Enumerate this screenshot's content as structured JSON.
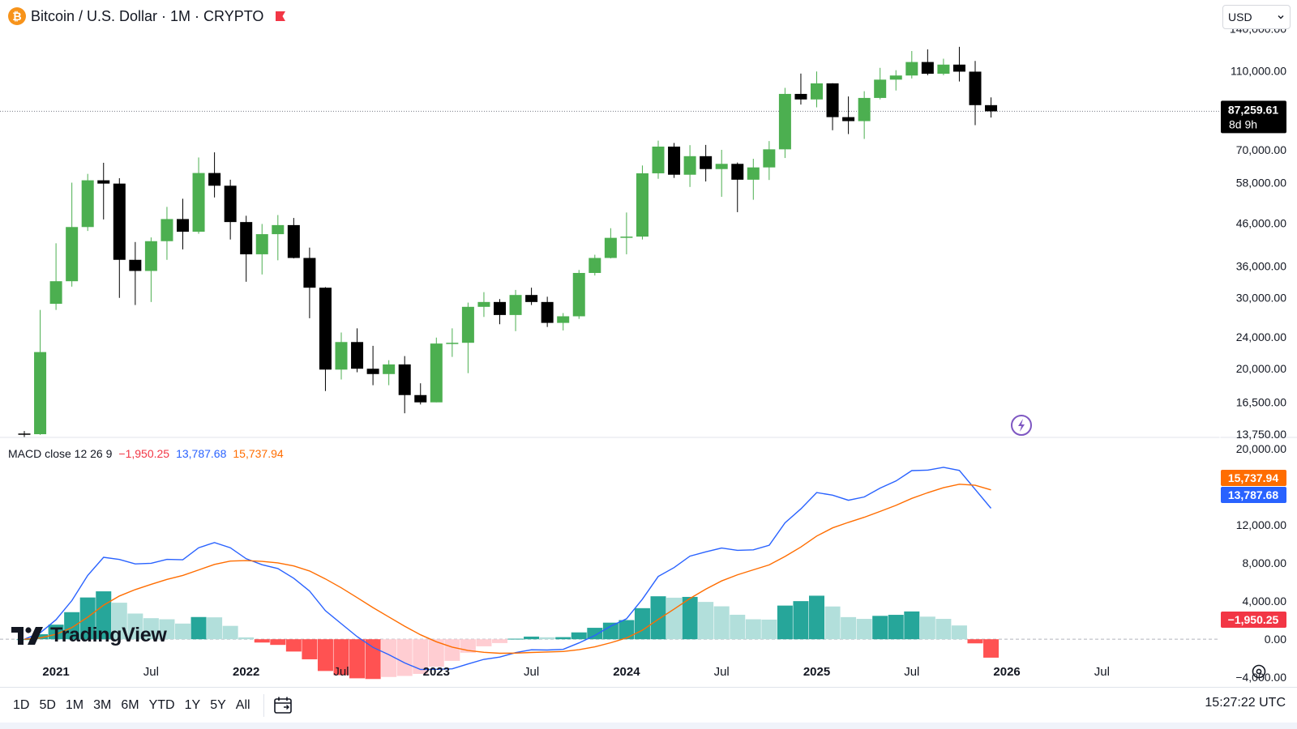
{
  "header": {
    "title": "Bitcoin / U.S. Dollar · 1M · CRYPTO",
    "btc_glyph": "₿",
    "icons": [
      "bitcoin-icon",
      "flag-icon"
    ]
  },
  "currency_select": {
    "value": "USD"
  },
  "price_tag": {
    "price": "87,259.61",
    "countdown": "8d 9h"
  },
  "macd_legend": {
    "label": "MACD close 12 26 9",
    "hist": "−1,950.25",
    "macd": "13,787.68",
    "signal": "15,737.94"
  },
  "logo": {
    "text": "TradingView"
  },
  "bottom_bar": {
    "periods": [
      "1D",
      "5D",
      "1M",
      "3M",
      "6M",
      "YTD",
      "1Y",
      "5Y",
      "All"
    ],
    "clock": "15:27:22 UTC"
  },
  "colors": {
    "up": "#4caf50",
    "down": "#000000",
    "macd": "#2962ff",
    "signal": "#ff6d00",
    "hist_up_strong": "#26a69a",
    "hist_up_weak": "#b2dfdb",
    "hist_down_strong": "#ff5252",
    "hist_down_weak": "#ffcdd2"
  },
  "chart_data": [
    {
      "type": "candlestick",
      "title": "Bitcoin / U.S. Dollar · 1M · CRYPTO",
      "scale": "log",
      "x_ticks": [
        "2021",
        "Jul",
        "2022",
        "Jul",
        "2023",
        "Jul",
        "2024",
        "Jul",
        "2025",
        "Jul",
        "2026",
        "Jul"
      ],
      "y_ticks": [
        "140,000.00",
        "110,000.00",
        "70,000.00",
        "58,000.00",
        "46,000.00",
        "36,000.00",
        "30,000.00",
        "24,000.00",
        "20,000.00",
        "16,500.00",
        "13,750.00"
      ],
      "y_tick_values": [
        140000,
        110000,
        70000,
        58000,
        46000,
        36000,
        30000,
        24000,
        20000,
        16500,
        13750
      ],
      "ylim": [
        13500,
        165000
      ],
      "last_price": 87259.61,
      "months": [
        "2020-11",
        "2020-12",
        "2021-01",
        "2021-02",
        "2021-03",
        "2021-04",
        "2021-05",
        "2021-06",
        "2021-07",
        "2021-08",
        "2021-09",
        "2021-10",
        "2021-11",
        "2021-12",
        "2022-01",
        "2022-02",
        "2022-03",
        "2022-04",
        "2022-05",
        "2022-06",
        "2022-07",
        "2022-08",
        "2022-09",
        "2022-10",
        "2022-11",
        "2022-12",
        "2023-01",
        "2023-02",
        "2023-03",
        "2023-04",
        "2023-05",
        "2023-06",
        "2023-07",
        "2023-08",
        "2023-09",
        "2023-10",
        "2023-11",
        "2023-12",
        "2024-01",
        "2024-02",
        "2024-03",
        "2024-04",
        "2024-05",
        "2024-06",
        "2024-07",
        "2024-08",
        "2024-09",
        "2024-10",
        "2024-11",
        "2024-12",
        "2025-01",
        "2025-02",
        "2025-03",
        "2025-04",
        "2025-05",
        "2025-06",
        "2025-07",
        "2025-08",
        "2025-09",
        "2025-10",
        "2025-11",
        "2025-12"
      ],
      "ohlc": [
        [
          13800,
          14000,
          13500,
          13750
        ],
        [
          13750,
          28000,
          13700,
          22000
        ],
        [
          29000,
          41000,
          28000,
          33000
        ],
        [
          33000,
          58000,
          32000,
          45000
        ],
        [
          45000,
          61000,
          44000,
          58800
        ],
        [
          58800,
          65000,
          47000,
          57700
        ],
        [
          57700,
          59500,
          30000,
          37300
        ],
        [
          37300,
          41300,
          28800,
          35000
        ],
        [
          35000,
          42400,
          29300,
          41500
        ],
        [
          41500,
          50500,
          37300,
          47100
        ],
        [
          47100,
          52900,
          39600,
          43800
        ],
        [
          43800,
          67000,
          43300,
          61300
        ],
        [
          61300,
          69000,
          53300,
          57000
        ],
        [
          57000,
          59000,
          41900,
          46300
        ],
        [
          46300,
          48000,
          32900,
          38500
        ],
        [
          38500,
          45800,
          34300,
          43200
        ],
        [
          43200,
          48200,
          37200,
          45500
        ],
        [
          45500,
          47400,
          37600,
          37700
        ],
        [
          37700,
          40000,
          26700,
          31800
        ],
        [
          31800,
          31900,
          17600,
          19900
        ],
        [
          19900,
          24600,
          18800,
          23300
        ],
        [
          23300,
          25200,
          19600,
          20000
        ],
        [
          20000,
          22800,
          18200,
          19400
        ],
        [
          19400,
          21000,
          18200,
          20500
        ],
        [
          20500,
          21500,
          15500,
          17200
        ],
        [
          17200,
          18400,
          16300,
          16500
        ],
        [
          16500,
          23900,
          16500,
          23100
        ],
        [
          23100,
          25200,
          21400,
          23200
        ],
        [
          23200,
          29200,
          19500,
          28500
        ],
        [
          28500,
          31000,
          26900,
          29300
        ],
        [
          29300,
          29800,
          25800,
          27200
        ],
        [
          27200,
          31400,
          24800,
          30500
        ],
        [
          30500,
          31800,
          28800,
          29300
        ],
        [
          29300,
          30200,
          25400,
          26000
        ],
        [
          26000,
          27500,
          24900,
          27000
        ],
        [
          27000,
          35200,
          26600,
          34600
        ],
        [
          34600,
          38400,
          34100,
          37700
        ],
        [
          37700,
          44700,
          37600,
          42300
        ],
        [
          42300,
          48900,
          38500,
          42600
        ],
        [
          42600,
          64000,
          41900,
          61200
        ],
        [
          61200,
          73800,
          59300,
          71300
        ],
        [
          71300,
          72800,
          59600,
          60700
        ],
        [
          60700,
          71900,
          56600,
          67500
        ],
        [
          67500,
          72000,
          58400,
          62700
        ],
        [
          62700,
          70000,
          53500,
          64600
        ],
        [
          64600,
          65100,
          49000,
          59000
        ],
        [
          59000,
          66500,
          52600,
          63300
        ],
        [
          63300,
          73600,
          58900,
          70200
        ],
        [
          70200,
          99800,
          66800,
          96400
        ],
        [
          96400,
          108300,
          90700,
          93400
        ],
        [
          93400,
          109600,
          89300,
          102400
        ],
        [
          102400,
          102500,
          78300,
          84400
        ],
        [
          84400,
          95000,
          76600,
          82500
        ],
        [
          82500,
          97900,
          74500,
          94200
        ],
        [
          94200,
          111900,
          93400,
          104600
        ],
        [
          104600,
          110400,
          98300,
          107100
        ],
        [
          107100,
          123200,
          105300,
          115700
        ],
        [
          115700,
          124400,
          107300,
          108200
        ],
        [
          108200,
          117900,
          107300,
          114000
        ],
        [
          114000,
          126200,
          103500,
          109500
        ],
        [
          109500,
          116400,
          80600,
          90400
        ],
        [
          90400,
          94500,
          84200,
          87260
        ]
      ]
    },
    {
      "type": "macd",
      "label": "MACD close 12 26 9",
      "y_ticks": [
        "20,000.00",
        "12,000.00",
        "8,000.00",
        "4,000.00",
        "0.00",
        "−4,000.00"
      ],
      "y_tick_values": [
        20000,
        12000,
        8000,
        4000,
        0,
        -4000
      ],
      "ylim": [
        -5000,
        20500
      ],
      "series": [
        {
          "name": "MACD",
          "last": 13787.68
        },
        {
          "name": "Signal",
          "last": 15737.94
        },
        {
          "name": "Histogram",
          "last": -1950.25
        }
      ]
    }
  ]
}
